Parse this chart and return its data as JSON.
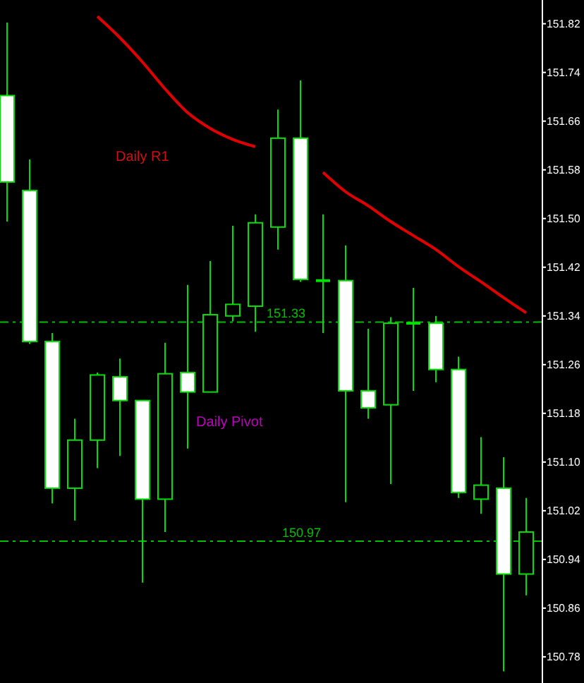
{
  "chart_data": {
    "type": "candlestick",
    "categories": [
      null,
      null,
      null,
      null,
      null,
      null,
      null,
      null,
      null,
      null,
      null,
      null,
      null,
      null,
      null,
      null,
      null,
      null,
      null,
      null,
      null,
      null,
      null,
      null
    ],
    "ohlc": [
      [
        151.702,
        151.822,
        151.495,
        151.56
      ],
      [
        151.546,
        151.597,
        151.294,
        151.298
      ],
      [
        151.298,
        151.312,
        151.032,
        151.057
      ],
      [
        151.057,
        151.171,
        151.004,
        151.136
      ],
      [
        151.136,
        151.247,
        151.09,
        151.243
      ],
      [
        151.24,
        151.27,
        151.11,
        151.201
      ],
      [
        151.201,
        151.201,
        150.902,
        151.039
      ],
      [
        151.039,
        151.296,
        150.985,
        151.245
      ],
      [
        151.247,
        151.391,
        151.122,
        151.215
      ],
      [
        151.215,
        151.43,
        151.215,
        151.342
      ],
      [
        151.34,
        151.488,
        151.331,
        151.359
      ],
      [
        151.356,
        151.507,
        151.314,
        151.493
      ],
      [
        151.486,
        151.679,
        151.449,
        151.632
      ],
      [
        151.632,
        151.727,
        151.396,
        151.4
      ],
      [
        151.398,
        151.507,
        151.312,
        151.398
      ],
      [
        151.398,
        151.456,
        151.034,
        151.217
      ],
      [
        151.217,
        151.319,
        151.171,
        151.189
      ],
      [
        151.194,
        151.338,
        151.064,
        151.328
      ],
      [
        151.328,
        151.386,
        151.217,
        151.328
      ],
      [
        151.328,
        151.34,
        151.231,
        151.252
      ],
      [
        151.252,
        151.273,
        151.041,
        151.05
      ],
      [
        151.039,
        151.141,
        151.015,
        151.062
      ],
      [
        151.057,
        151.108,
        150.756,
        150.916
      ],
      [
        150.916,
        151.041,
        150.881,
        150.985
      ]
    ],
    "series": [
      {
        "type": "line",
        "color": "#e00000",
        "values": [
          null,
          null,
          null,
          null,
          151.832,
          151.797,
          151.757,
          151.713,
          151.674,
          151.648,
          151.63,
          151.618,
          null,
          null,
          151.576,
          151.544,
          151.521,
          151.495,
          151.472,
          151.449,
          151.421,
          151.396,
          151.37,
          151.345
        ]
      }
    ],
    "ylim": [
      150.737,
      151.859
    ],
    "yticks": [
      151.82,
      151.74,
      151.66,
      151.58,
      {
        "value": 151.5,
        "label": "151.50"
      },
      151.42,
      151.34,
      151.26,
      151.18,
      {
        "value": 151.1,
        "label": "151.10"
      },
      151.02,
      150.94,
      150.86,
      150.78
    ],
    "ref_lines": [
      {
        "axis": "y",
        "value": 151.33,
        "label": "151.33",
        "color": "#00c000",
        "line_style": "dashed"
      },
      {
        "axis": "y",
        "value": 150.97,
        "label": "150.97",
        "color": "#00c000",
        "line_style": "dashed"
      }
    ],
    "annotations": [
      "Daily R1",
      "Daily Pivot"
    ],
    "tick_labels": "y",
    "grid": false
  }
}
